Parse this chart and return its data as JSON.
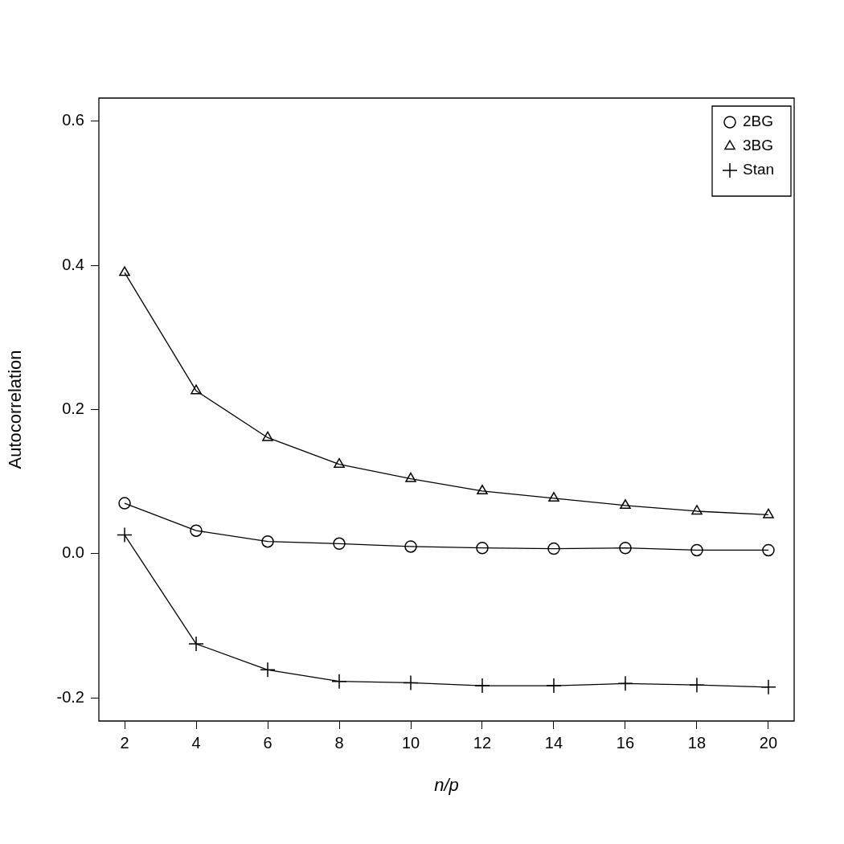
{
  "chart_data": {
    "type": "line",
    "xlabel": "n/p",
    "ylabel": "Autocorrelation",
    "x": [
      2,
      4,
      6,
      8,
      10,
      12,
      14,
      16,
      18,
      20
    ],
    "series": [
      {
        "name": "2BG",
        "color": "#000000",
        "marker": "circle",
        "values": [
          0.07,
          0.032,
          0.017,
          0.014,
          0.01,
          0.008,
          0.007,
          0.008,
          0.005,
          0.005
        ]
      },
      {
        "name": "3BG",
        "color": "#000000",
        "marker": "triangle",
        "values": [
          0.39,
          0.226,
          0.161,
          0.124,
          0.104,
          0.087,
          0.077,
          0.067,
          0.059,
          0.054
        ]
      },
      {
        "name": "Stan",
        "color": "#000000",
        "marker": "cross",
        "values": [
          0.026,
          -0.125,
          -0.161,
          -0.177,
          -0.179,
          -0.183,
          -0.183,
          -0.18,
          -0.182,
          -0.185
        ]
      }
    ],
    "xlim": [
      1.28,
      20.72
    ],
    "xticks": [
      2,
      4,
      6,
      8,
      10,
      12,
      14,
      16,
      18,
      20
    ],
    "ylim": [
      -0.232,
      0.632
    ],
    "yticks": [
      -0.2,
      {
        "value": 0,
        "label": "0.0"
      },
      0.2,
      0.4,
      0.6
    ],
    "grid": false,
    "legend": "top right",
    "line_style": "solid"
  }
}
